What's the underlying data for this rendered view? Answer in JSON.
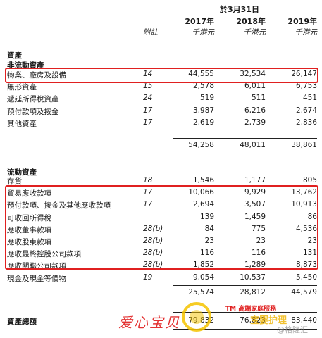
{
  "header": {
    "date_label": "於3月31日",
    "note_col": "附註",
    "years": [
      "2017年",
      "2018年",
      "2019年"
    ],
    "unit": "千港元"
  },
  "sections": {
    "assets": "資產",
    "non_current": "非流動資產",
    "current": "流動資產",
    "total": "資產總額"
  },
  "non_current_rows": [
    {
      "label": "物業、廠房及設備",
      "note": "14",
      "v2017": "44,555",
      "v2018": "32,534",
      "v2019": "26,147"
    },
    {
      "label": "無形資產",
      "note": "15",
      "v2017": "2,578",
      "v2018": "6,011",
      "v2019": "6,753"
    },
    {
      "label": "遞延所得稅資產",
      "note": "24",
      "v2017": "519",
      "v2018": "511",
      "v2019": "451"
    },
    {
      "label": "預付款項及按金",
      "note": "17",
      "v2017": "3,987",
      "v2018": "6,216",
      "v2019": "2,674"
    },
    {
      "label": "其他資產",
      "note": "17",
      "v2017": "2,619",
      "v2018": "2,739",
      "v2019": "2,836"
    }
  ],
  "non_current_subtotal": {
    "v2017": "54,258",
    "v2018": "48,011",
    "v2019": "38,861"
  },
  "current_rows": [
    {
      "label": "存貨",
      "note": "18",
      "v2017": "1,546",
      "v2018": "1,177",
      "v2019": "805"
    },
    {
      "label": "貿易應收款項",
      "note": "17",
      "v2017": "10,066",
      "v2018": "9,929",
      "v2019": "13,762"
    },
    {
      "label": "預付款項、按金及其他應收款項",
      "note": "17",
      "v2017": "2,694",
      "v2018": "3,507",
      "v2019": "10,913"
    },
    {
      "label": "可收回所得稅",
      "note": "",
      "v2017": "139",
      "v2018": "1,459",
      "v2019": "86"
    },
    {
      "label": "應收董事款項",
      "note": "28(b)",
      "v2017": "84",
      "v2018": "775",
      "v2019": "4,536"
    },
    {
      "label": "應收股東款項",
      "note": "28(b)",
      "v2017": "23",
      "v2018": "23",
      "v2019": "23"
    },
    {
      "label": "應收最終控股公司款項",
      "note": "28(b)",
      "v2017": "116",
      "v2018": "116",
      "v2019": "131"
    },
    {
      "label": "應收關聯公司款項",
      "note": "28(b)",
      "v2017": "1,852",
      "v2018": "1,289",
      "v2019": "8,873"
    },
    {
      "label": "現金及現金等價物",
      "note": "19",
      "v2017": "9,054",
      "v2018": "10,537",
      "v2019": "5,450"
    }
  ],
  "current_subtotal": {
    "v2017": "25,574",
    "v2018": "28,812",
    "v2019": "44,579"
  },
  "total_row": {
    "v2017": "79,832",
    "v2018": "76,823",
    "v2019": "83,440"
  },
  "watermark": {
    "brand": "爱心宝贝",
    "tm_text": "TM 高端家庭服務",
    "faint_text": "宝婴护理",
    "author": "@格隆汇"
  },
  "colors": {
    "highlight_box": "#e02020",
    "watermark_red": "#e01e1e"
  }
}
